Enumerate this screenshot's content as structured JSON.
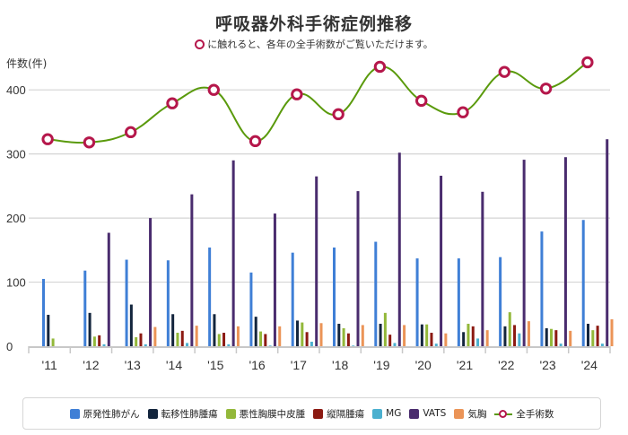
{
  "header": {
    "title": "呼吸器外科手術症例推移",
    "subtitle": "に触れると、各年の全手術数がご覧いただけます。"
  },
  "axis": {
    "y_title": "件数(件)"
  },
  "colors": {
    "primary_lung_cancer": "#3f7fd6",
    "metastatic_lung_tumor": "#13253d",
    "mesothelioma": "#93b83a",
    "mediastinal_tumor": "#8c1a12",
    "mg": "#4bb0cf",
    "vats": "#4a2c6e",
    "pneumothorax": "#eb9457",
    "total_line": "#5a9a0c",
    "total_marker": "#b5174b"
  },
  "legend": {
    "items": [
      {
        "label": "原発性肺がん",
        "color": "#3f7fd6"
      },
      {
        "label": "転移性肺腫瘍",
        "color": "#13253d"
      },
      {
        "label": "悪性胸膜中皮腫",
        "color": "#93b83a"
      },
      {
        "label": "縦隔腫瘍",
        "color": "#8c1a12"
      },
      {
        "label": "MG",
        "color": "#4bb0cf"
      },
      {
        "label": "VATS",
        "color": "#4a2c6e"
      },
      {
        "label": "気胸",
        "color": "#eb9457"
      }
    ],
    "line_label": "全手術数"
  },
  "chart_data": {
    "type": "bar",
    "title": "呼吸器外科手術症例推移",
    "subtitle": "に触れると、各年の全手術数がご覧いただけます。",
    "xlabel": "",
    "ylabel": "件数(件)",
    "ylim": [
      0,
      450
    ],
    "yticks": [
      0,
      100,
      200,
      300,
      400
    ],
    "grid": true,
    "legend_position": "bottom",
    "categories": [
      "'11",
      "'12",
      "'13",
      "'14",
      "'15",
      "'16",
      "'17",
      "'18",
      "'19",
      "'20",
      "'21",
      "'22",
      "'23",
      "'24"
    ],
    "series": [
      {
        "name": "原発性肺がん",
        "type": "bar",
        "values": [
          105,
          118,
          135,
          134,
          154,
          115,
          146,
          154,
          163,
          137,
          137,
          139,
          179,
          197
        ]
      },
      {
        "name": "転移性肺腫瘍",
        "type": "bar",
        "values": [
          49,
          52,
          65,
          50,
          50,
          46,
          40,
          35,
          35,
          34,
          22,
          31,
          28,
          35
        ]
      },
      {
        "name": "悪性胸膜中皮腫",
        "type": "bar",
        "values": [
          12,
          15,
          14,
          21,
          19,
          23,
          37,
          28,
          52,
          34,
          35,
          53,
          27,
          25
        ]
      },
      {
        "name": "縦隔腫瘍",
        "type": "bar",
        "values": [
          0,
          17,
          20,
          24,
          21,
          19,
          22,
          20,
          18,
          21,
          31,
          33,
          25,
          32
        ]
      },
      {
        "name": "MG",
        "type": "bar",
        "values": [
          0,
          3,
          3,
          5,
          3,
          1,
          7,
          1,
          5,
          4,
          12,
          20,
          4,
          4
        ]
      },
      {
        "name": "VATS",
        "type": "bar",
        "values": [
          0,
          177,
          200,
          237,
          290,
          207,
          265,
          242,
          302,
          266,
          241,
          291,
          295,
          323
        ]
      },
      {
        "name": "気胸",
        "type": "bar",
        "values": [
          0,
          0,
          30,
          32,
          31,
          31,
          36,
          33,
          33,
          20,
          25,
          39,
          24,
          42
        ]
      },
      {
        "name": "全手術数",
        "type": "line",
        "values": [
          323,
          318,
          334,
          379,
          400,
          320,
          393,
          362,
          436,
          383,
          365,
          428,
          402,
          443
        ]
      }
    ]
  }
}
